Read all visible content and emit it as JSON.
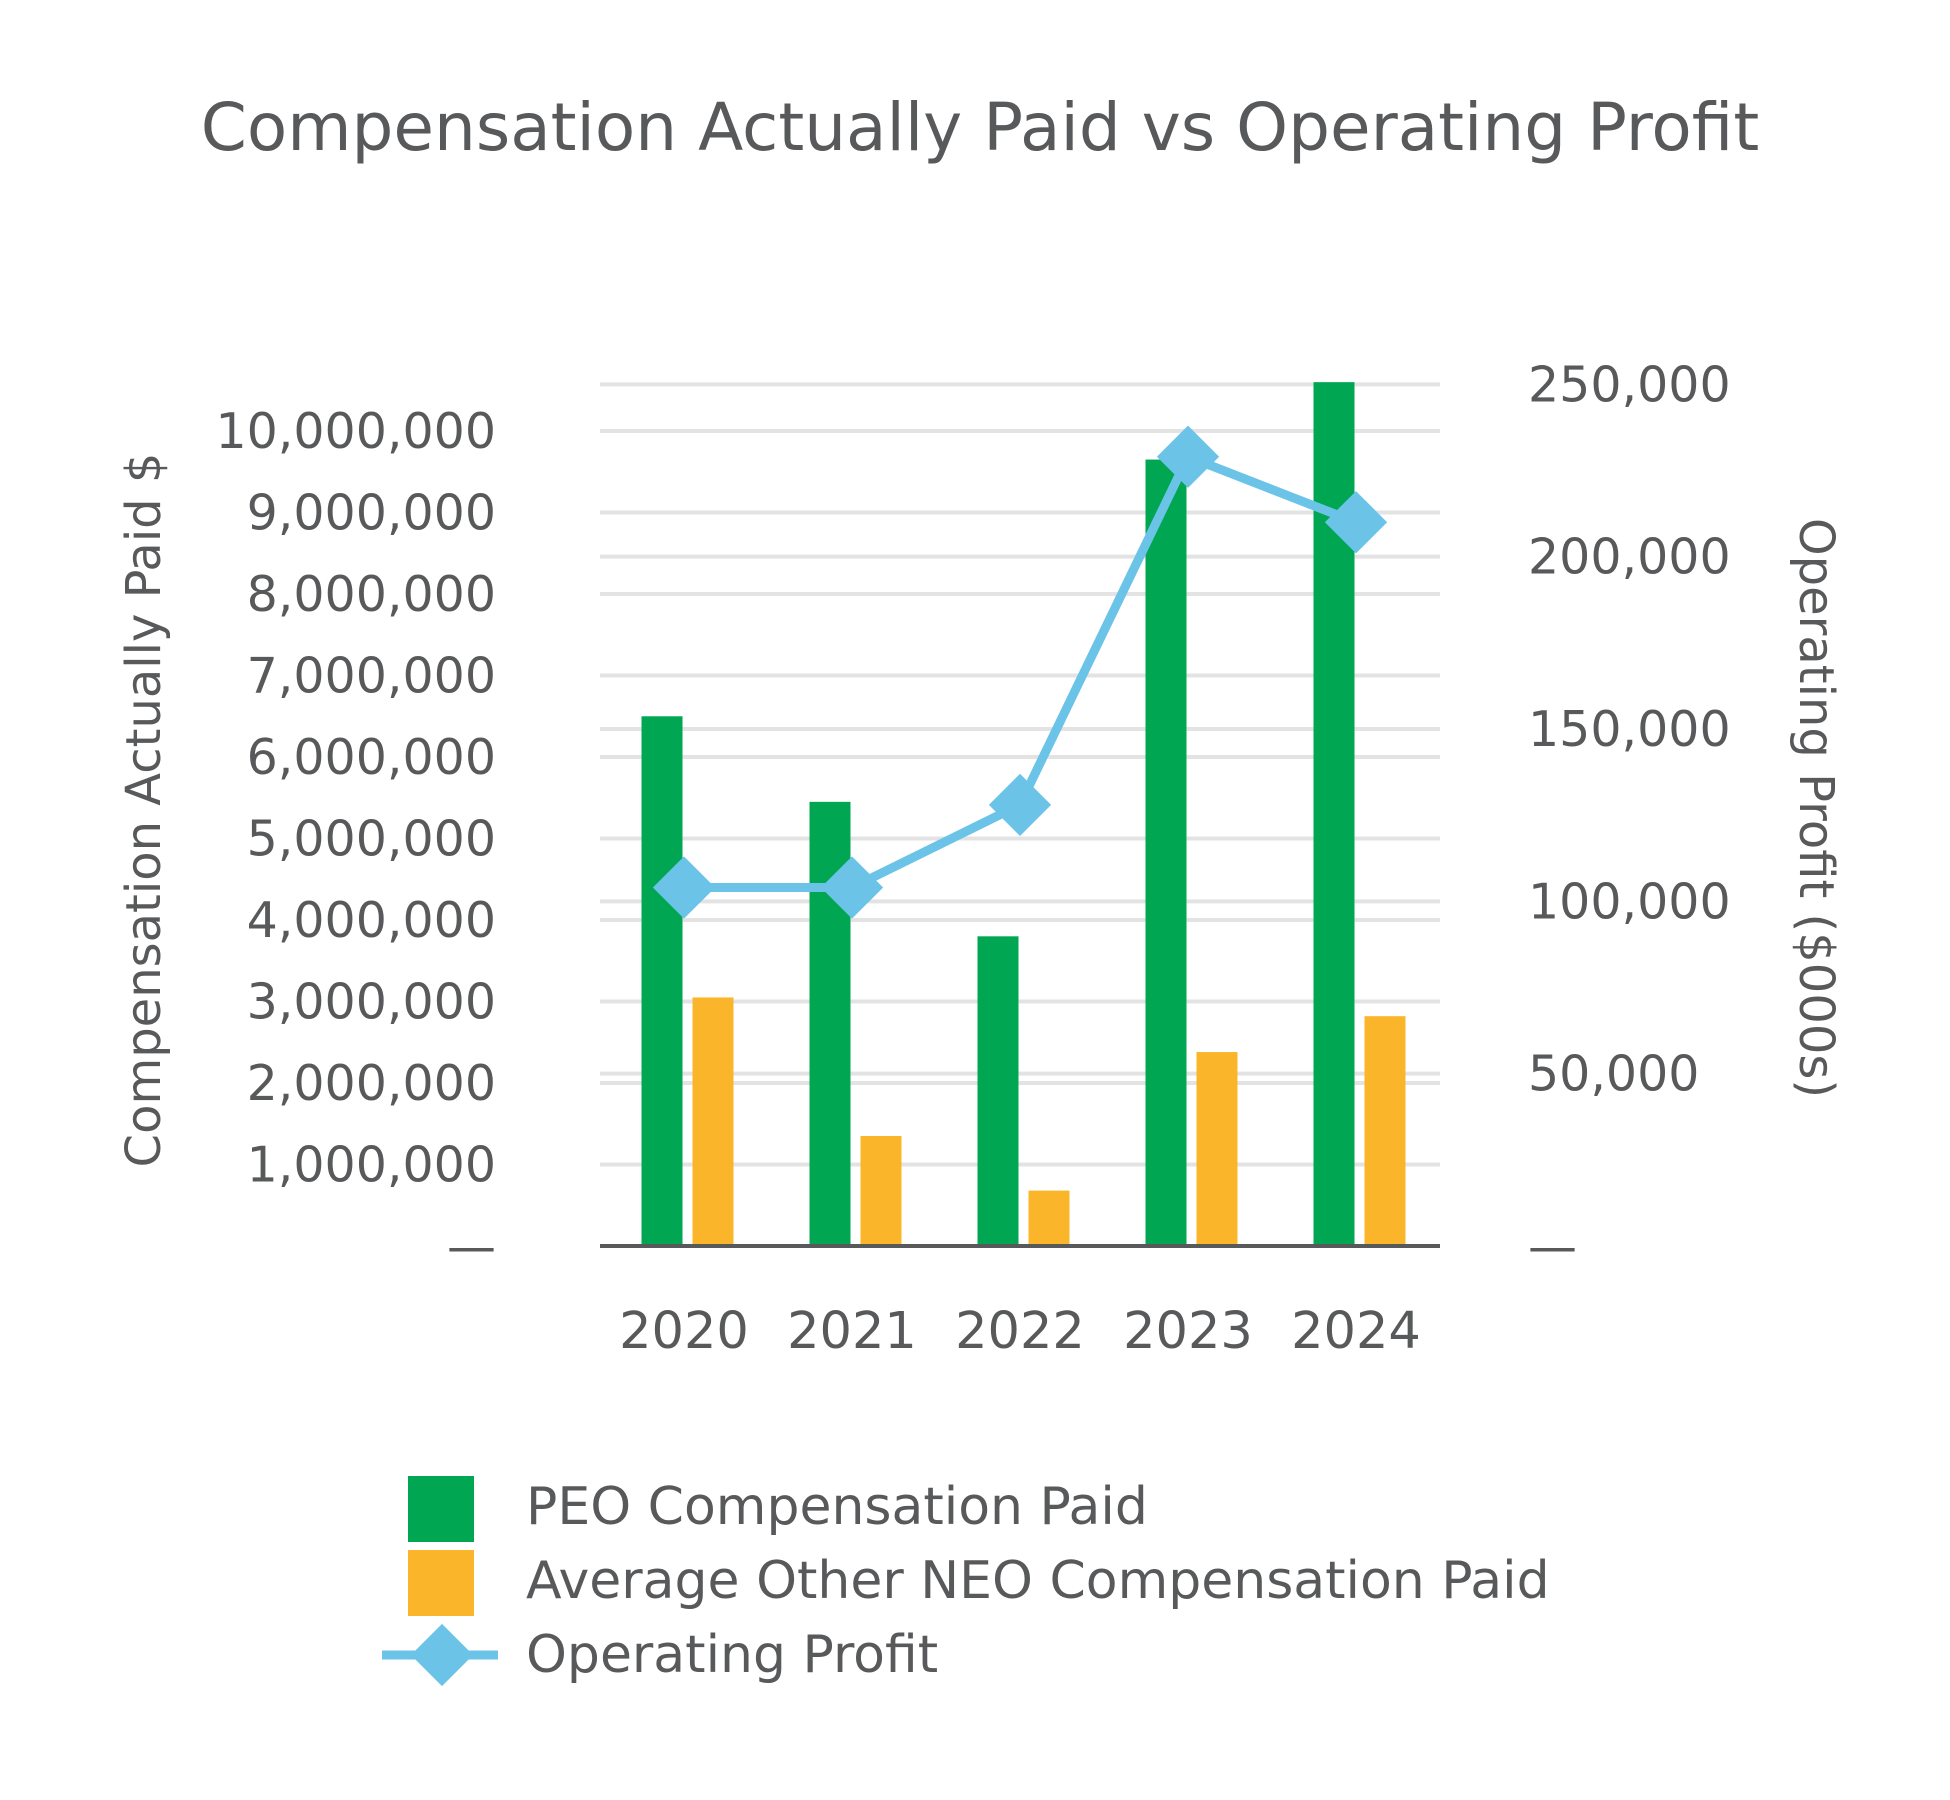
{
  "chart_data": {
    "type": "bar",
    "title": "Compensation Actually Paid vs Operating Profit",
    "categories": [
      "2020",
      "2021",
      "2022",
      "2023",
      "2024"
    ],
    "series": [
      {
        "name": "PEO Compensation Paid",
        "type": "bar",
        "axis": "left",
        "color": "#00a651",
        "values": [
          6500000,
          5450000,
          3800000,
          9650000,
          10600000
        ]
      },
      {
        "name": "Average Other NEO Compensation Paid",
        "type": "bar",
        "axis": "left",
        "color": "#fbb52b",
        "values": [
          3050000,
          1350000,
          680000,
          2380000,
          2820000
        ]
      },
      {
        "name": "Operating Profit",
        "type": "line",
        "axis": "right",
        "marker": "diamond",
        "color": "#6cc3e8",
        "values": [
          104000,
          104000,
          128000,
          229000,
          210000
        ]
      }
    ],
    "ylabel": "Compensation Actually Paid $",
    "ylabel_right": "Operating Profit ($000s)",
    "ylim": [
      0,
      10700000
    ],
    "ylim_right": [
      0,
      253000
    ],
    "yticks": [
      "—",
      "1,000,000",
      "2,000,000",
      "3,000,000",
      "4,000,000",
      "5,000,000",
      "6,000,000",
      "7,000,000",
      "8,000,000",
      "9,000,000",
      "10,000,000"
    ],
    "yticks_right": [
      "—",
      "50,000",
      "100,000",
      "150,000",
      "200,000",
      "250,000"
    ],
    "grid": true,
    "legend": "bottom"
  }
}
